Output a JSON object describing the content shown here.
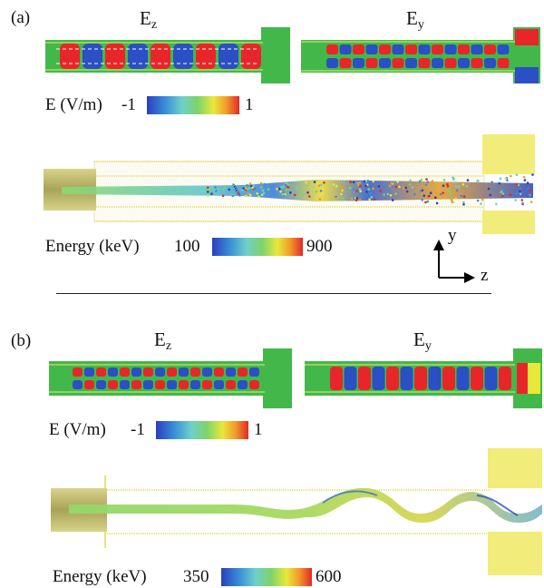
{
  "panel_a": {
    "label": "(a)",
    "ez_title_main": "E",
    "ez_title_sub": "z",
    "ey_title_main": "E",
    "ey_title_sub": "y",
    "field_scale_label": "E (V/m)",
    "field_scale_min": "-1",
    "field_scale_max": "1",
    "energy_label": "Energy (keV)",
    "energy_min": "100",
    "energy_max": "900",
    "axis_y": "y",
    "axis_z": "z"
  },
  "panel_b": {
    "label": "(b)",
    "ez_title_main": "E",
    "ez_title_sub": "z",
    "ey_title_main": "E",
    "ey_title_sub": "y",
    "field_scale_label": "E (V/m)",
    "field_scale_min": "-1",
    "field_scale_max": "1",
    "energy_label": "Energy (keV)",
    "energy_min": "350",
    "energy_max": "600"
  },
  "colors": {
    "scale": [
      "#2a3fbf",
      "#3a8fd8",
      "#6fd0c8",
      "#7ed36b",
      "#e8e83a",
      "#f29a2a",
      "#e02a2a"
    ],
    "structure_green": "#43b84a",
    "cavity_yellow": "#f2ec7a",
    "field_red": "#e8262a",
    "field_blue": "#2b4fc4"
  }
}
